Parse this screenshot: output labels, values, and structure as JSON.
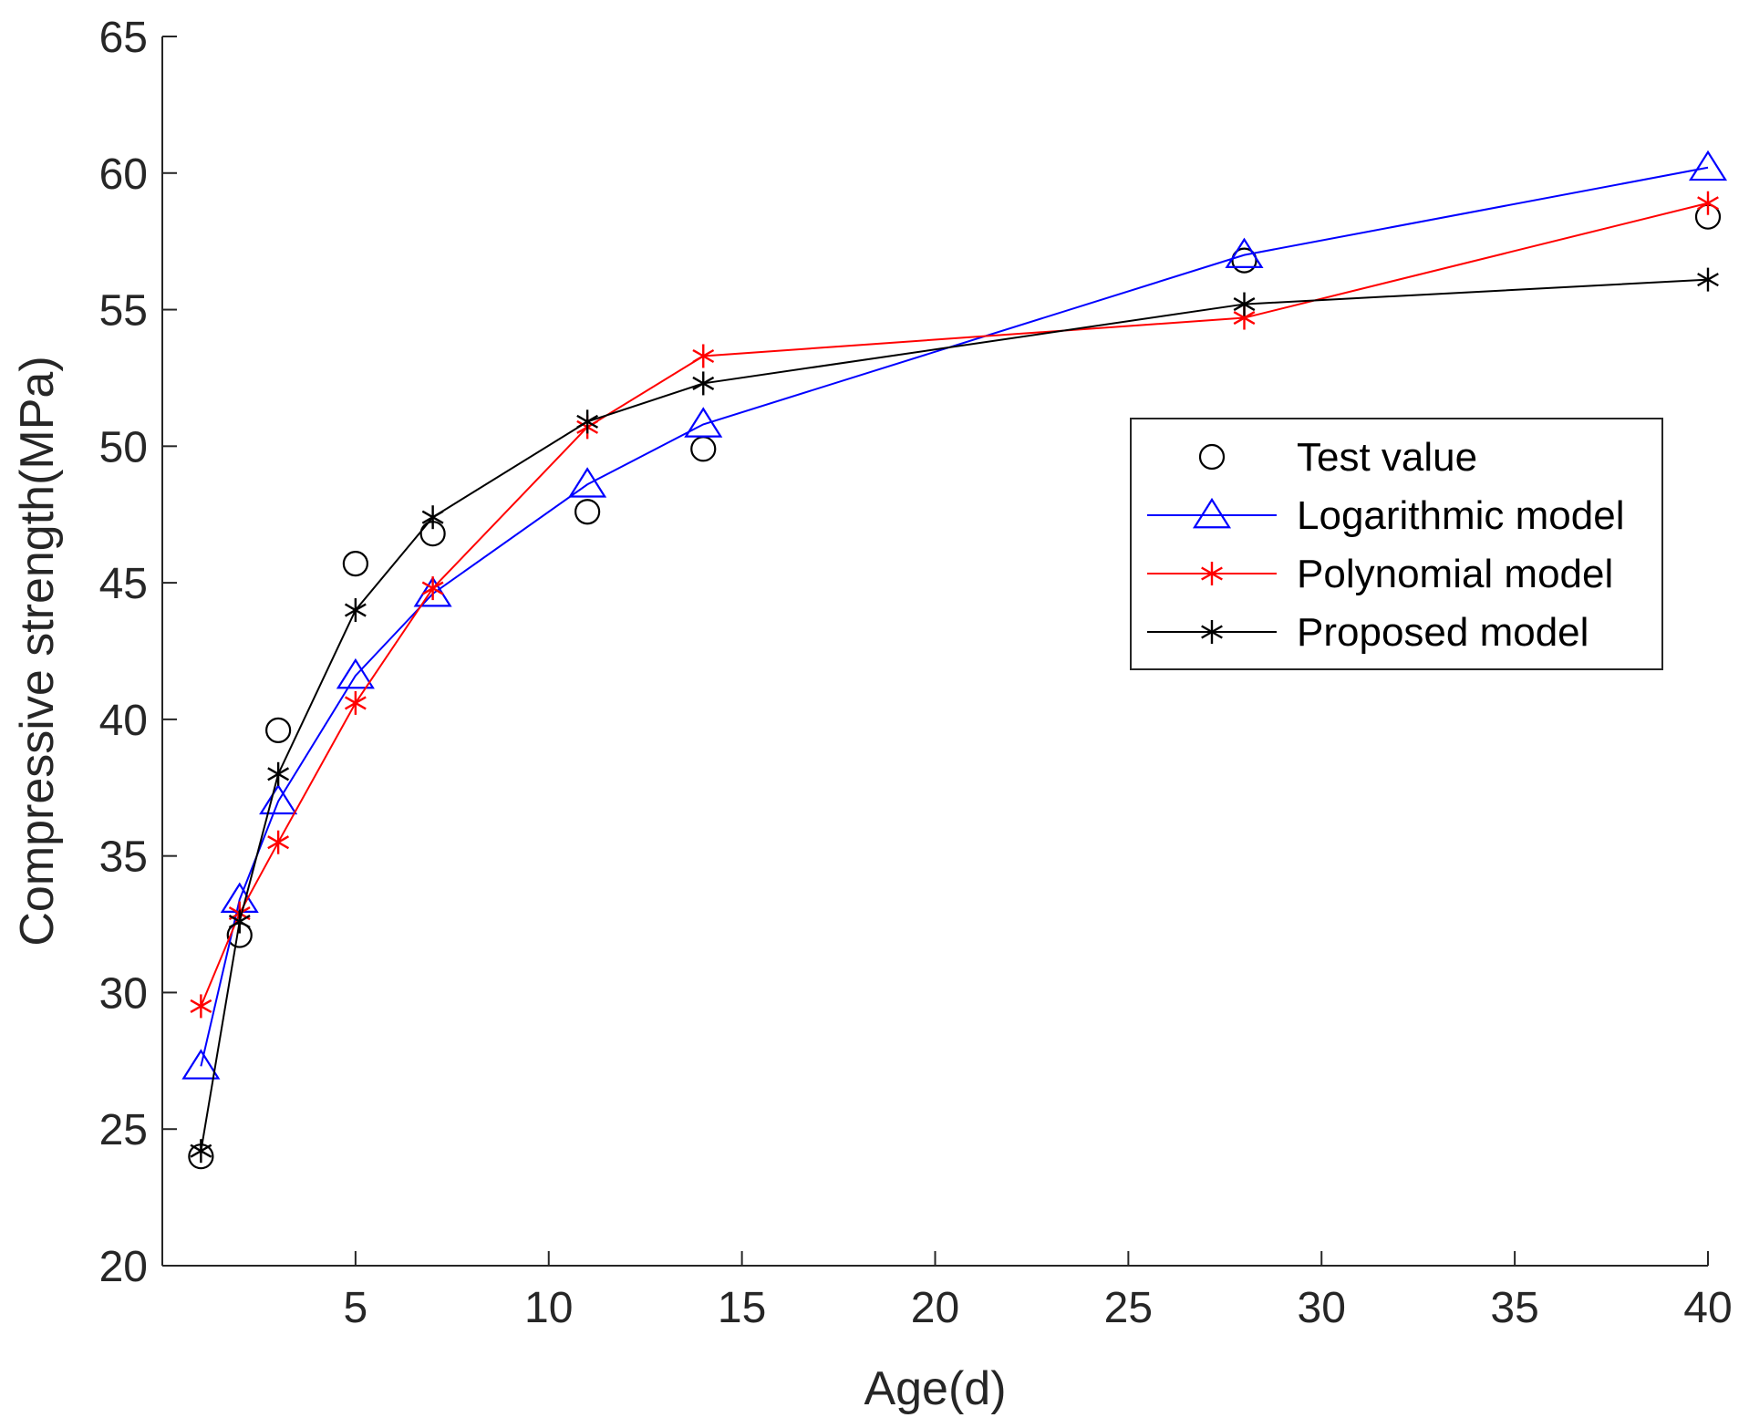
{
  "chart_data": {
    "type": "line",
    "title": "",
    "xlabel": "Age(d)",
    "ylabel": "Compressive strength(MPa)",
    "xlim": [
      0,
      40
    ],
    "ylim": [
      20,
      65
    ],
    "xticks": [
      5,
      10,
      15,
      20,
      25,
      30,
      35,
      40
    ],
    "yticks": [
      20,
      25,
      30,
      35,
      40,
      45,
      50,
      55,
      60,
      65
    ],
    "grid": false,
    "legend_position": "middle-right",
    "series": [
      {
        "name": "Test value",
        "color": "#000000",
        "marker": "circle",
        "line": false,
        "x": [
          1,
          2,
          3,
          5,
          7,
          11,
          14,
          28,
          40
        ],
        "y": [
          24.0,
          32.1,
          39.6,
          45.7,
          46.8,
          47.6,
          49.9,
          56.8,
          58.4
        ]
      },
      {
        "name": "Logarithmic model",
        "color": "#0000ff",
        "marker": "triangle",
        "line": true,
        "x": [
          1,
          2,
          3,
          5,
          7,
          11,
          14,
          28,
          40
        ],
        "y": [
          27.3,
          33.4,
          37.0,
          41.6,
          44.6,
          48.6,
          50.8,
          57.0,
          60.2
        ]
      },
      {
        "name": "Polynomial model",
        "color": "#ff0000",
        "marker": "asterisk",
        "line": true,
        "x": [
          1,
          2,
          3,
          5,
          7,
          11,
          14,
          28,
          40
        ],
        "y": [
          29.5,
          32.9,
          35.5,
          40.6,
          44.8,
          50.7,
          53.3,
          54.7,
          58.9
        ]
      },
      {
        "name": "Proposed model",
        "color": "#000000",
        "marker": "asterisk",
        "line": true,
        "x": [
          1,
          2,
          3,
          5,
          7,
          11,
          14,
          28,
          40
        ],
        "y": [
          24.2,
          32.6,
          38.0,
          44.0,
          47.4,
          50.9,
          52.3,
          55.2,
          56.1
        ]
      }
    ]
  }
}
